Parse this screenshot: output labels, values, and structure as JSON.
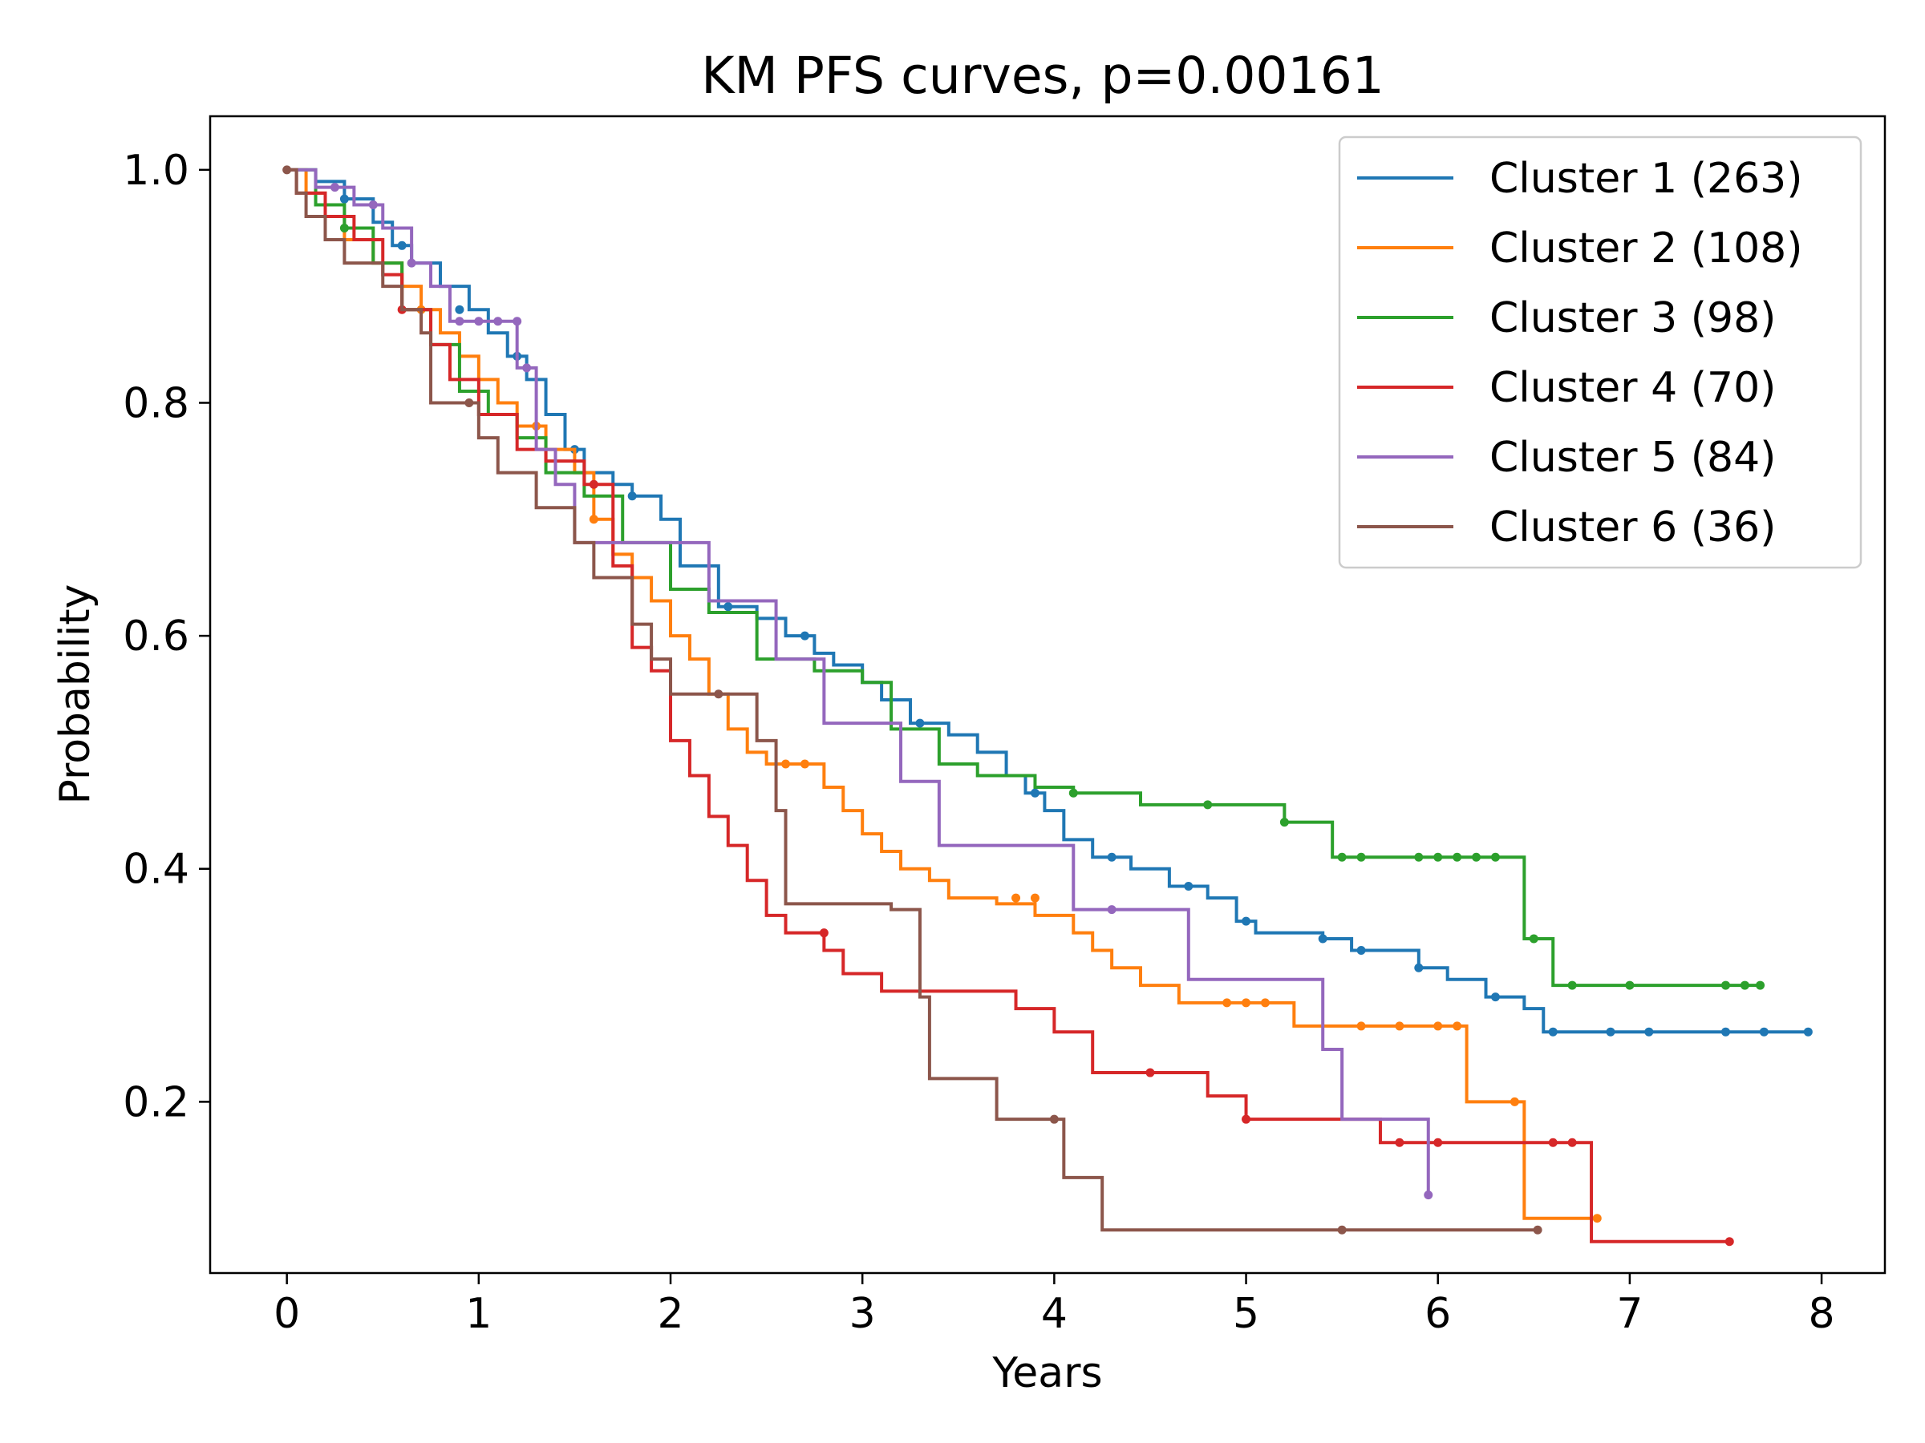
{
  "chart_data": {
    "type": "line",
    "step": "post",
    "title": "KM PFS curves, p=0.00161",
    "xlabel": "Years",
    "ylabel": "Probability",
    "xlim": [
      -0.4,
      8.33
    ],
    "ylim": [
      0.053,
      1.046
    ],
    "xticks": [
      0,
      1,
      2,
      3,
      4,
      5,
      6,
      7,
      8
    ],
    "yticks": [
      0.2,
      0.4,
      0.6,
      0.8,
      1.0
    ],
    "ytick_labels": [
      "0.2",
      "0.4",
      "0.6",
      "0.8",
      "1.0"
    ],
    "grid": false,
    "legend": "top-right",
    "series": [
      {
        "name": "Cluster 1 (263)",
        "color": "#1f77b4",
        "x": [
          0,
          0.15,
          0.3,
          0.45,
          0.55,
          0.65,
          0.8,
          0.95,
          1.05,
          1.15,
          1.25,
          1.35,
          1.45,
          1.55,
          1.7,
          1.8,
          1.95,
          2.05,
          2.25,
          2.45,
          2.6,
          2.75,
          2.85,
          3.0,
          3.1,
          3.25,
          3.45,
          3.6,
          3.75,
          3.85,
          3.95,
          4.05,
          4.2,
          4.4,
          4.6,
          4.8,
          4.95,
          5.05,
          5.4,
          5.55,
          5.9,
          6.05,
          6.25,
          6.45,
          6.55,
          7.93
        ],
        "y": [
          1.0,
          0.99,
          0.975,
          0.955,
          0.935,
          0.92,
          0.9,
          0.88,
          0.86,
          0.84,
          0.82,
          0.79,
          0.76,
          0.74,
          0.73,
          0.72,
          0.7,
          0.66,
          0.625,
          0.615,
          0.6,
          0.585,
          0.575,
          0.56,
          0.545,
          0.525,
          0.515,
          0.5,
          0.48,
          0.465,
          0.45,
          0.425,
          0.41,
          0.4,
          0.385,
          0.375,
          0.355,
          0.345,
          0.34,
          0.33,
          0.315,
          0.305,
          0.29,
          0.28,
          0.26,
          0.26
        ],
        "censor_x": [
          0.3,
          0.6,
          0.9,
          1.2,
          1.5,
          1.8,
          2.3,
          2.7,
          3.3,
          3.9,
          4.3,
          4.7,
          5.0,
          5.4,
          5.6,
          5.9,
          6.3,
          6.6,
          6.9,
          7.1,
          7.5,
          7.7,
          7.93
        ],
        "censor_y": [
          0.975,
          0.935,
          0.88,
          0.84,
          0.76,
          0.72,
          0.625,
          0.6,
          0.525,
          0.465,
          0.41,
          0.385,
          0.355,
          0.34,
          0.33,
          0.315,
          0.29,
          0.26,
          0.26,
          0.26,
          0.26,
          0.26,
          0.26
        ]
      },
      {
        "name": "Cluster 2 (108)",
        "color": "#ff7f0e",
        "x": [
          0,
          0.1,
          0.2,
          0.3,
          0.45,
          0.6,
          0.7,
          0.8,
          0.9,
          1.0,
          1.1,
          1.2,
          1.35,
          1.5,
          1.6,
          1.7,
          1.8,
          1.9,
          2.0,
          2.1,
          2.2,
          2.3,
          2.4,
          2.5,
          2.6,
          2.8,
          2.9,
          3.0,
          3.1,
          3.2,
          3.35,
          3.45,
          3.55,
          3.7,
          3.9,
          4.1,
          4.2,
          4.3,
          4.45,
          4.65,
          5.25,
          5.5,
          6.15,
          6.45,
          6.83
        ],
        "y": [
          1.0,
          0.98,
          0.96,
          0.94,
          0.92,
          0.9,
          0.88,
          0.86,
          0.84,
          0.82,
          0.8,
          0.78,
          0.76,
          0.74,
          0.7,
          0.67,
          0.65,
          0.63,
          0.6,
          0.58,
          0.55,
          0.52,
          0.5,
          0.49,
          0.49,
          0.47,
          0.45,
          0.43,
          0.415,
          0.4,
          0.39,
          0.375,
          0.375,
          0.37,
          0.36,
          0.345,
          0.33,
          0.315,
          0.3,
          0.285,
          0.265,
          0.265,
          0.2,
          0.1,
          0.1
        ],
        "censor_x": [
          0.7,
          1.3,
          1.6,
          2.6,
          2.7,
          3.8,
          3.9,
          4.9,
          5.0,
          5.1,
          5.6,
          5.8,
          6.0,
          6.1,
          6.4,
          6.83
        ],
        "censor_y": [
          0.88,
          0.78,
          0.7,
          0.49,
          0.49,
          0.375,
          0.375,
          0.285,
          0.285,
          0.285,
          0.265,
          0.265,
          0.265,
          0.265,
          0.2,
          0.1
        ]
      },
      {
        "name": "Cluster 3 (98)",
        "color": "#2ca02c",
        "x": [
          0,
          0.15,
          0.3,
          0.45,
          0.6,
          0.75,
          0.9,
          1.05,
          1.2,
          1.35,
          1.55,
          1.75,
          2.0,
          2.2,
          2.45,
          2.75,
          3.0,
          3.15,
          3.4,
          3.6,
          3.9,
          4.1,
          4.45,
          5.2,
          5.45,
          6.45,
          6.6,
          7.68
        ],
        "y": [
          1.0,
          0.97,
          0.95,
          0.92,
          0.88,
          0.85,
          0.81,
          0.79,
          0.77,
          0.74,
          0.72,
          0.68,
          0.64,
          0.62,
          0.58,
          0.57,
          0.56,
          0.52,
          0.49,
          0.48,
          0.47,
          0.465,
          0.455,
          0.44,
          0.41,
          0.34,
          0.3,
          0.3
        ],
        "censor_x": [
          0.3,
          4.1,
          4.8,
          5.2,
          5.5,
          5.6,
          5.9,
          6.0,
          6.1,
          6.2,
          6.3,
          6.5,
          6.7,
          7.0,
          7.5,
          7.6,
          7.68
        ],
        "censor_y": [
          0.95,
          0.465,
          0.455,
          0.44,
          0.41,
          0.41,
          0.41,
          0.41,
          0.41,
          0.41,
          0.41,
          0.34,
          0.3,
          0.3,
          0.3,
          0.3,
          0.3
        ]
      },
      {
        "name": "Cluster 4 (70)",
        "color": "#d62728",
        "x": [
          0,
          0.05,
          0.2,
          0.35,
          0.5,
          0.6,
          0.75,
          0.85,
          1.0,
          1.2,
          1.35,
          1.55,
          1.7,
          1.8,
          1.9,
          2.0,
          2.1,
          2.2,
          2.3,
          2.4,
          2.5,
          2.6,
          2.8,
          2.9,
          3.1,
          3.5,
          3.8,
          4.0,
          4.2,
          4.6,
          4.8,
          5.0,
          5.7,
          6.6,
          6.8,
          7.52
        ],
        "y": [
          1.0,
          0.98,
          0.96,
          0.94,
          0.91,
          0.88,
          0.85,
          0.82,
          0.79,
          0.76,
          0.75,
          0.73,
          0.66,
          0.59,
          0.57,
          0.51,
          0.48,
          0.445,
          0.42,
          0.39,
          0.36,
          0.345,
          0.33,
          0.31,
          0.295,
          0.295,
          0.28,
          0.26,
          0.225,
          0.225,
          0.205,
          0.185,
          0.165,
          0.165,
          0.08,
          0.08
        ],
        "censor_x": [
          0.6,
          1.6,
          2.8,
          4.5,
          5.0,
          5.8,
          6.0,
          6.6,
          6.7,
          7.52
        ],
        "censor_y": [
          0.88,
          0.73,
          0.345,
          0.225,
          0.185,
          0.165,
          0.165,
          0.165,
          0.165,
          0.08
        ]
      },
      {
        "name": "Cluster 5 (84)",
        "color": "#9467bd",
        "x": [
          0,
          0.15,
          0.35,
          0.5,
          0.65,
          0.75,
          0.85,
          1.2,
          1.3,
          1.4,
          1.5,
          1.6,
          2.2,
          2.55,
          2.8,
          3.2,
          3.4,
          4.1,
          4.7,
          5.4,
          5.5,
          5.95
        ],
        "y": [
          1.0,
          0.985,
          0.97,
          0.95,
          0.92,
          0.9,
          0.87,
          0.83,
          0.76,
          0.73,
          0.68,
          0.68,
          0.63,
          0.58,
          0.525,
          0.475,
          0.42,
          0.365,
          0.305,
          0.245,
          0.185,
          0.12
        ],
        "censor_x": [
          0.25,
          0.45,
          0.65,
          0.9,
          1.0,
          1.1,
          1.2,
          1.25,
          4.3,
          5.95
        ],
        "censor_y": [
          0.985,
          0.97,
          0.92,
          0.87,
          0.87,
          0.87,
          0.87,
          0.83,
          0.365,
          0.12
        ]
      },
      {
        "name": "Cluster 6 (36)",
        "color": "#8c564b",
        "x": [
          0,
          0.05,
          0.1,
          0.2,
          0.3,
          0.5,
          0.6,
          0.7,
          0.75,
          0.9,
          1.0,
          1.1,
          1.3,
          1.5,
          1.6,
          1.8,
          1.9,
          2.0,
          2.25,
          2.45,
          2.55,
          2.6,
          3.15,
          3.3,
          3.35,
          3.7,
          4.05,
          4.25,
          6.52
        ],
        "y": [
          1.0,
          0.98,
          0.96,
          0.94,
          0.92,
          0.9,
          0.88,
          0.86,
          0.8,
          0.8,
          0.77,
          0.74,
          0.71,
          0.68,
          0.65,
          0.61,
          0.58,
          0.55,
          0.55,
          0.51,
          0.45,
          0.37,
          0.365,
          0.29,
          0.22,
          0.185,
          0.135,
          0.09,
          0.09
        ],
        "censor_x": [
          0,
          0.95,
          2.25,
          4.0,
          5.5,
          6.52
        ],
        "censor_y": [
          1.0,
          0.8,
          0.55,
          0.185,
          0.09,
          0.09
        ]
      }
    ]
  }
}
